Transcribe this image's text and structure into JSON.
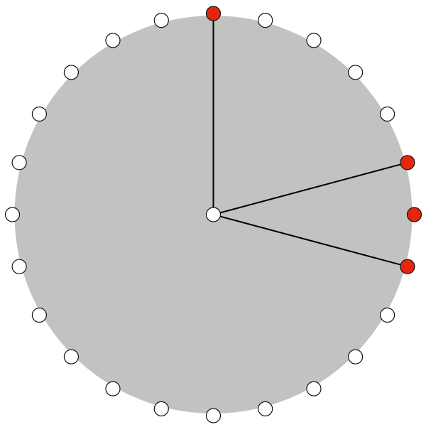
{
  "dial": {
    "node_count": 24,
    "selected_nodes": [
      0,
      5,
      6,
      7
    ],
    "spokes_to": [
      0,
      5,
      7
    ],
    "colors": {
      "face": "#c2c2c1",
      "selected_fill": "#e5260a",
      "node_fill": "#ffffff",
      "outline": "#111111",
      "spoke": "#000000"
    }
  }
}
